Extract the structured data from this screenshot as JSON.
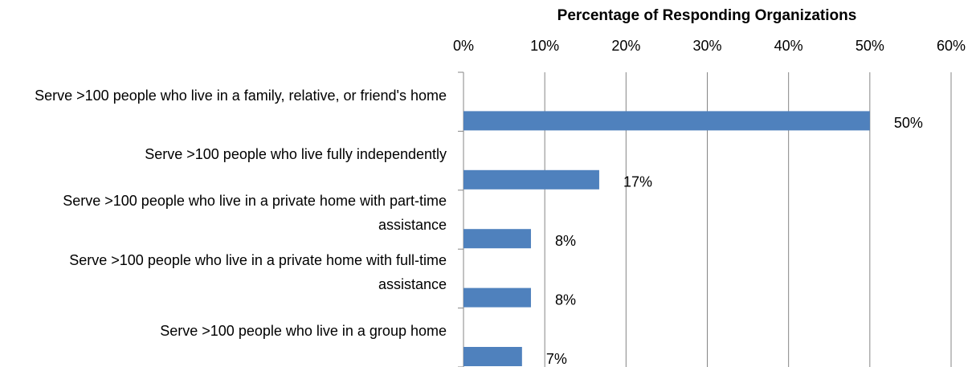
{
  "chart_data": {
    "type": "barh",
    "x_label": "Percentage of Responding Organizations",
    "categories": [
      "Serve >100 people who live in a family, relative, or friend's home",
      "Serve >100 people who live fully independently",
      "Serve >100 people who live in a private home with part-time assistance",
      "Serve >100 people who live in a private home with full-time assistance",
      "Serve >100 people who live in a group home"
    ],
    "values": [
      50,
      16.7,
      8.3,
      8.3,
      7.2
    ],
    "value_labels": [
      "50%",
      "17%",
      "8%",
      "8%",
      "7%"
    ],
    "color": "#4f81bd",
    "xlim": [
      0,
      60
    ],
    "xticks": [
      {
        "value": 0,
        "label": "0%"
      },
      {
        "value": 10,
        "label": "10%"
      },
      {
        "value": 20,
        "label": "20%"
      },
      {
        "value": 30,
        "label": "30%"
      },
      {
        "value": 40,
        "label": "40%"
      },
      {
        "value": 50,
        "label": "50%"
      },
      {
        "value": 60,
        "label": "60%"
      }
    ],
    "grid": true
  }
}
